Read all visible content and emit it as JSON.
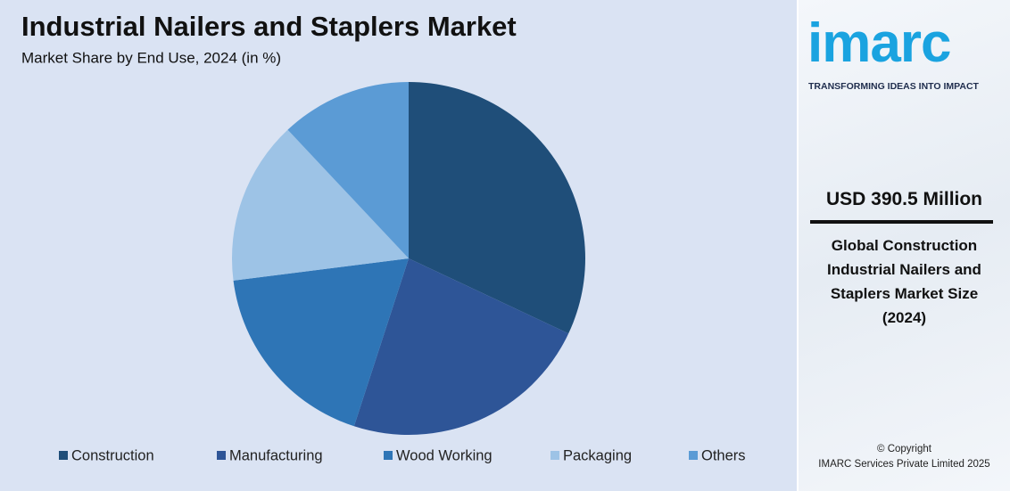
{
  "chart_data": {
    "type": "pie",
    "title": "Industrial Nailers and Staplers Market",
    "subtitle": "Market Share by End Use, 2024 (in %)",
    "categories": [
      "Construction",
      "Manufacturing",
      "Wood Working",
      "Packaging",
      "Others"
    ],
    "values": [
      32,
      23,
      18,
      15,
      12
    ],
    "colors": [
      "#1f4e79",
      "#2e5597",
      "#2e75b6",
      "#9dc3e6",
      "#5b9bd5"
    ]
  },
  "sidebar": {
    "logo": "imarc",
    "tagline": "TRANSFORMING IDEAS INTO IMPACT",
    "market_value": "USD 390.5 Million",
    "description": "Global Construction Industrial Nailers and Staplers Market Size (2024)",
    "copyright": "© Copyright",
    "company": "IMARC Services Private Limited 2025"
  }
}
